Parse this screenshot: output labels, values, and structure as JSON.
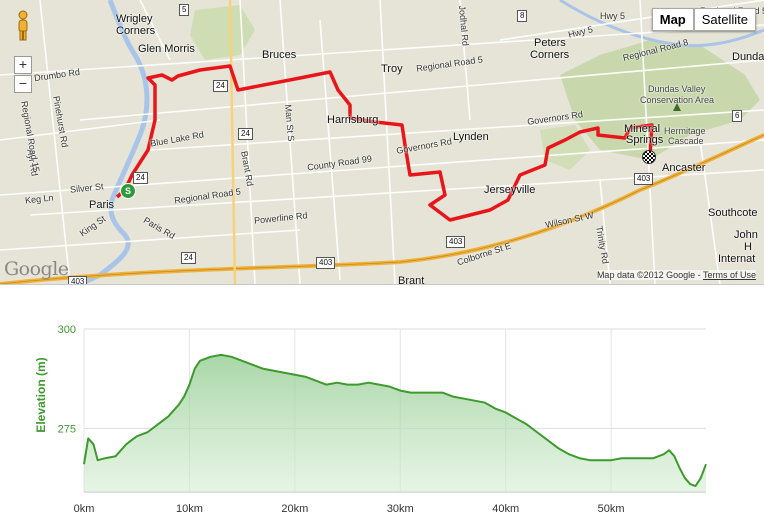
{
  "map": {
    "map_button": "Map",
    "satellite_button": "Satellite",
    "zoom_in": "+",
    "zoom_out": "−",
    "google_logo": "Google",
    "attribution": "Map data ©2012 Google -",
    "terms_link": "Terms of Use",
    "colors": {
      "route": "#e8161b",
      "highway": "#f1b23c",
      "land": "#e6e4d6",
      "park": "#c2d6a4",
      "water": "#a9c4e8"
    },
    "places": [
      {
        "name": "Wrigley"
      },
      {
        "name": "Corners"
      },
      {
        "name": "Glen Morris"
      },
      {
        "name": "Bruces"
      },
      {
        "name": "Troy"
      },
      {
        "name": "Peters"
      },
      {
        "name": "Corners"
      },
      {
        "name": "Dundas"
      },
      {
        "name": "Dundas Valley"
      },
      {
        "name": "Conservation Area"
      },
      {
        "name": "Hermitage"
      },
      {
        "name": "Cascade"
      },
      {
        "name": "Harrisburg"
      },
      {
        "name": "Lynden"
      },
      {
        "name": "Mineral"
      },
      {
        "name": "Springs"
      },
      {
        "name": "Ancaster"
      },
      {
        "name": "Jerseyville"
      },
      {
        "name": "Paris"
      },
      {
        "name": "Southcote"
      },
      {
        "name": "John"
      },
      {
        "name": "H"
      },
      {
        "name": "Internat"
      },
      {
        "name": "Brant"
      }
    ],
    "roads": [
      {
        "name": "Drumbo Rd"
      },
      {
        "name": "Pinehurst Rd"
      },
      {
        "name": "Regional Road 5"
      },
      {
        "name": "Blue Lake Rd"
      },
      {
        "name": "Brant Rd"
      },
      {
        "name": "Man St S"
      },
      {
        "name": "Governors Rd"
      },
      {
        "name": "County Road 99"
      },
      {
        "name": "Governors Rd"
      },
      {
        "name": "Regional Road 5"
      },
      {
        "name": "Powerline Rd"
      },
      {
        "name": "Silver St"
      },
      {
        "name": "Keg Ln"
      },
      {
        "name": "Ayr Rd"
      },
      {
        "name": "King St"
      },
      {
        "name": "Paris Rd"
      },
      {
        "name": "Wilson St W"
      },
      {
        "name": "Colborne St E"
      },
      {
        "name": "Trinity Rd"
      },
      {
        "name": "Regional Road 8"
      },
      {
        "name": "Hwy 5"
      },
      {
        "name": "Jodhal Rd"
      },
      {
        "name": "Regional Road 15"
      },
      {
        "name": "Regional Road 5"
      },
      {
        "name": "Hwy 5"
      }
    ],
    "shields": [
      "24",
      "24",
      "24",
      "24",
      "403",
      "403",
      "403",
      "403",
      "6",
      "8",
      "5"
    ],
    "start_marker": "S"
  },
  "chart_data": {
    "type": "area",
    "ylabel": "Elevation (m)",
    "x_ticks": [
      "0km",
      "10km",
      "20km",
      "30km",
      "40km",
      "50km"
    ],
    "y_ticks": [
      "300",
      "275"
    ],
    "xlim": [
      0,
      59
    ],
    "ylim": [
      259,
      300
    ],
    "line_color": "#3d9a2d",
    "fill_color": "#8cc98a",
    "x": [
      0,
      0.4,
      0.9,
      1.3,
      2,
      3,
      4,
      5,
      6,
      7,
      8,
      9,
      9.5,
      10,
      10.5,
      11,
      12,
      13,
      14,
      15,
      16,
      17,
      18,
      19,
      20,
      21,
      22,
      23,
      24,
      25,
      26,
      27,
      28,
      29,
      30,
      31,
      32,
      33,
      34,
      35,
      36,
      37,
      38,
      39,
      40,
      41,
      42,
      43,
      44,
      45,
      46,
      47,
      48,
      49,
      50,
      51,
      52,
      53,
      54,
      55,
      55.5,
      56,
      56.5,
      57,
      57.5,
      58,
      58.5,
      59
    ],
    "y": [
      266,
      272.5,
      271,
      267,
      267.5,
      268,
      271,
      273,
      274,
      276,
      278,
      281,
      283,
      286,
      290,
      292,
      293,
      293.5,
      293,
      292,
      291,
      290,
      289.5,
      289,
      288.5,
      288,
      287,
      286,
      286.5,
      286,
      286,
      286.5,
      286,
      285.5,
      284.5,
      284,
      284,
      284,
      284,
      283,
      282.5,
      282,
      281.5,
      280,
      279,
      277.5,
      276,
      274,
      272,
      270,
      268.5,
      267.5,
      267,
      267,
      267,
      267.5,
      267.5,
      267.5,
      267.5,
      268.5,
      269.5,
      268,
      265,
      262.5,
      261,
      260.5,
      262.5,
      266
    ]
  }
}
